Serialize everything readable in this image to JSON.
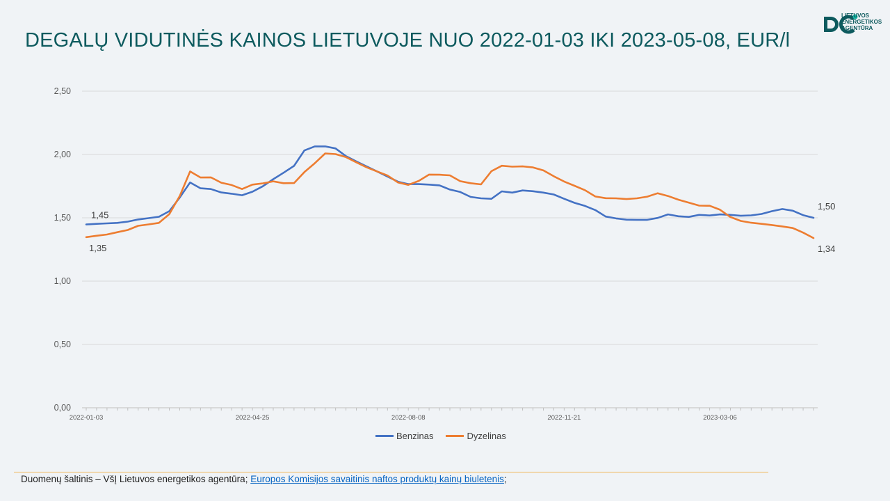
{
  "title": "DEGALŲ VIDUTINĖS KAINOS LIETUVOJE NUO 2022-01-03 IKI 2023-05-08, EUR/l",
  "logo": {
    "lines": [
      "LIETUVOS",
      "ENERGETIKOS",
      "AGENTŪRA"
    ]
  },
  "source": {
    "prefix": "Duomenų šaltinis – VšĮ Lietuvos energetikos agentūra; ",
    "link_text": "Europos Komisijos savaitinis naftos produktų kainų biuletenis",
    "suffix": ";"
  },
  "chart_data": {
    "type": "line",
    "title": "DEGALŲ VIDUTINĖS KAINOS LIETUVOJE NUO 2022-01-03 IKI 2023-05-08, EUR/l",
    "x_tick_labels": [
      "2022-01-03",
      "2022-04-25",
      "2022-08-08",
      "2022-11-21",
      "2023-03-06"
    ],
    "x_tick_indices": [
      0,
      16,
      31,
      46,
      61
    ],
    "y_ticks": [
      "0,00",
      "0,50",
      "1,00",
      "1,50",
      "2,00",
      "2,50"
    ],
    "ylim": [
      0,
      2.5
    ],
    "grid": "horizontal",
    "legend_position": "bottom",
    "series": [
      {
        "name": "Benzinas",
        "color": "#4472c4",
        "values": [
          1.447,
          1.452,
          1.456,
          1.46,
          1.47,
          1.487,
          1.497,
          1.508,
          1.552,
          1.66,
          1.779,
          1.733,
          1.727,
          1.7,
          1.69,
          1.678,
          1.706,
          1.749,
          1.805,
          1.856,
          1.91,
          2.032,
          2.064,
          2.064,
          2.048,
          1.987,
          1.945,
          1.905,
          1.866,
          1.826,
          1.785,
          1.766,
          1.766,
          1.762,
          1.756,
          1.723,
          1.704,
          1.665,
          1.654,
          1.65,
          1.709,
          1.699,
          1.716,
          1.71,
          1.699,
          1.684,
          1.65,
          1.618,
          1.594,
          1.561,
          1.51,
          1.495,
          1.485,
          1.484,
          1.484,
          1.499,
          1.527,
          1.512,
          1.507,
          1.523,
          1.518,
          1.527,
          1.523,
          1.516,
          1.519,
          1.53,
          1.552,
          1.569,
          1.556,
          1.521,
          1.5
        ],
        "first_label": "1,45",
        "last_label": "1,50"
      },
      {
        "name": "Dyzelinas",
        "color": "#ed7d31",
        "values": [
          1.347,
          1.358,
          1.368,
          1.386,
          1.404,
          1.437,
          1.448,
          1.46,
          1.529,
          1.672,
          1.866,
          1.818,
          1.819,
          1.777,
          1.759,
          1.727,
          1.762,
          1.772,
          1.788,
          1.773,
          1.774,
          1.861,
          1.931,
          2.008,
          2.003,
          1.979,
          1.938,
          1.898,
          1.866,
          1.834,
          1.779,
          1.76,
          1.791,
          1.841,
          1.84,
          1.835,
          1.789,
          1.773,
          1.764,
          1.868,
          1.911,
          1.904,
          1.906,
          1.898,
          1.874,
          1.828,
          1.786,
          1.753,
          1.718,
          1.668,
          1.655,
          1.654,
          1.648,
          1.654,
          1.667,
          1.694,
          1.672,
          1.643,
          1.62,
          1.596,
          1.595,
          1.564,
          1.506,
          1.475,
          1.461,
          1.452,
          1.443,
          1.432,
          1.419,
          1.383,
          1.34
        ],
        "first_label": "1,35",
        "last_label": "1,34"
      }
    ]
  }
}
